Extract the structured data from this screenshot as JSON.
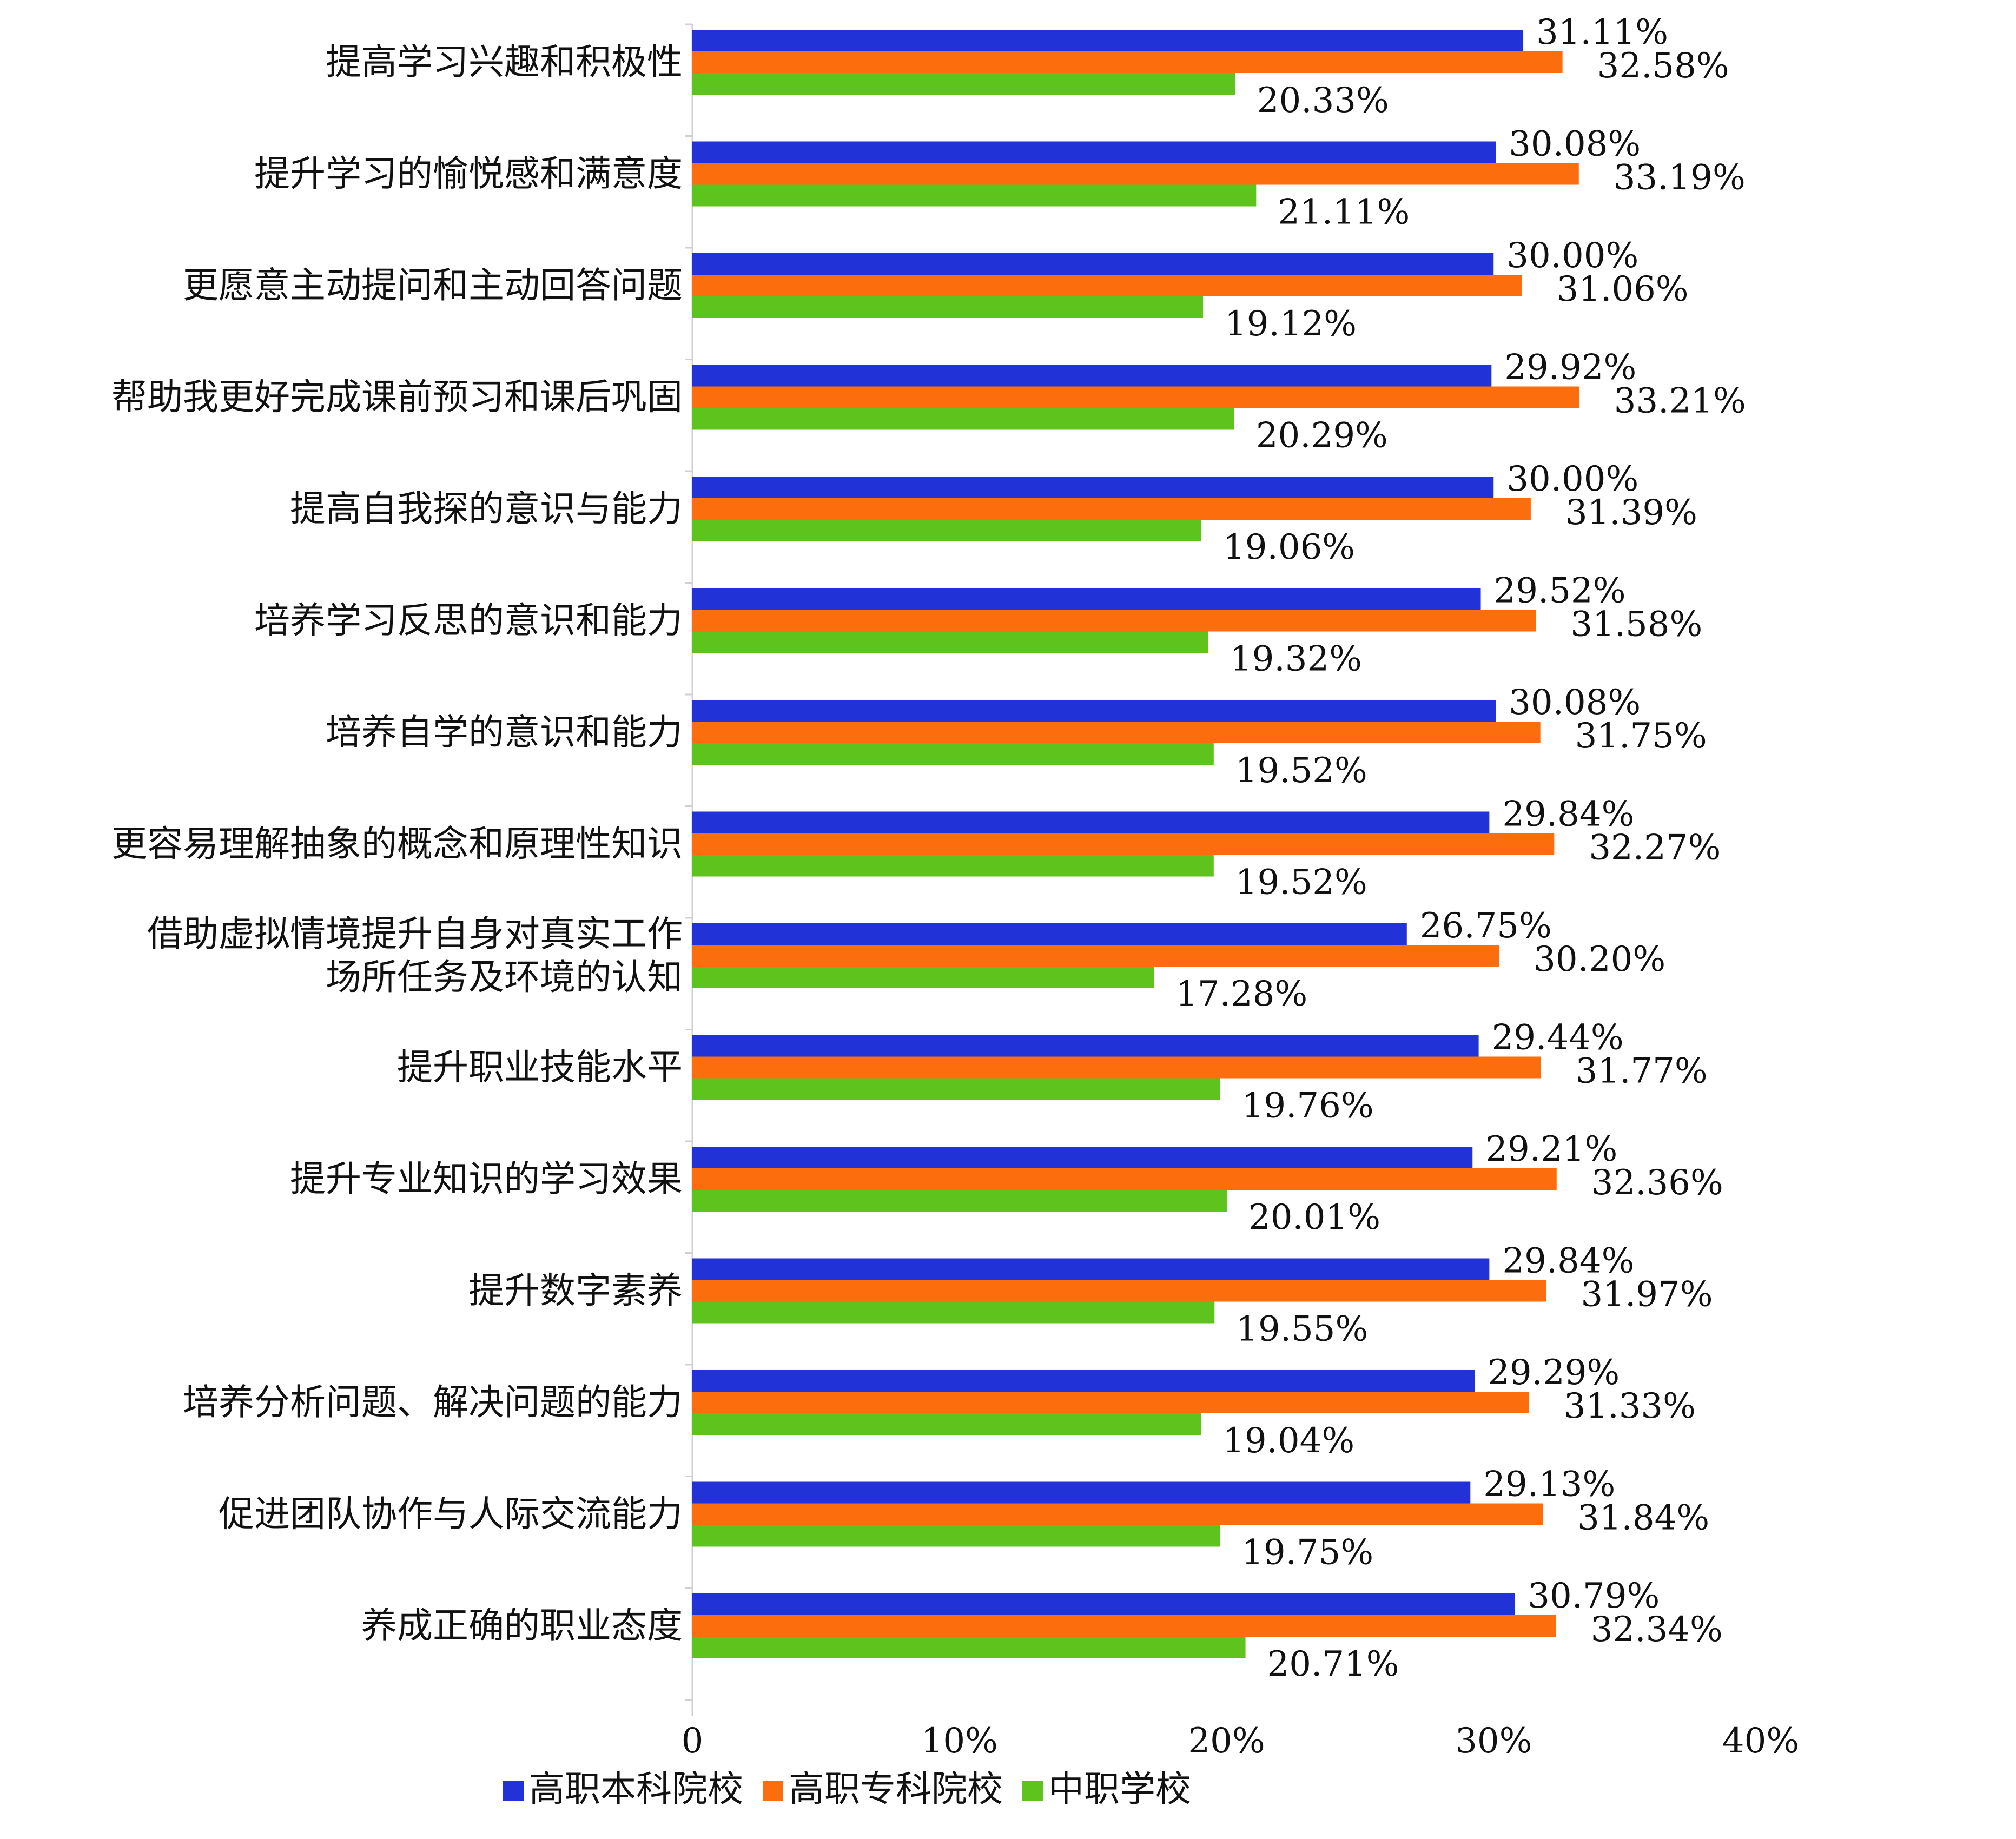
{
  "chart_data": {
    "type": "bar",
    "orientation": "horizontal",
    "categories": [
      [
        "提高学习兴趣和积极性"
      ],
      [
        "提升学习的愉悦感和满意度"
      ],
      [
        "更愿意主动提问和主动回答问题"
      ],
      [
        "帮助我更好完成课前预习和课后巩固"
      ],
      [
        "提高自我探的意识与能力"
      ],
      [
        "培养学习反思的意识和能力"
      ],
      [
        "培养自学的意识和能力"
      ],
      [
        "更容易理解抽象的概念和原理性知识"
      ],
      [
        "借助虚拟情境提升自身对真实工作",
        "场所任务及环境的认知"
      ],
      [
        "提升职业技能水平"
      ],
      [
        "提升专业知识的学习效果"
      ],
      [
        "提升数字素养"
      ],
      [
        "培养分析问题、解决问题的能力"
      ],
      [
        "促进团队协作与人际交流能力"
      ],
      [
        "养成正确的职业态度"
      ]
    ],
    "series": [
      {
        "name": "高职本科院校",
        "color": "#2132d6",
        "values": [
          31.11,
          30.08,
          30.0,
          29.92,
          30.0,
          29.52,
          30.08,
          29.84,
          26.75,
          29.44,
          29.21,
          29.84,
          29.29,
          29.13,
          30.79
        ],
        "labels": [
          "31.11%",
          "30.08%",
          "30.00%",
          "29.92%",
          "30.00%",
          "29.52%",
          "30.08%",
          "29.84%",
          "26.75%",
          "29.44%",
          "29.21%",
          "29.84%",
          "29.29%",
          "29.13%",
          "30.79%"
        ]
      },
      {
        "name": "高职专科院校",
        "color": "#fb6d0d",
        "values": [
          32.58,
          33.19,
          31.06,
          33.21,
          31.39,
          31.58,
          31.75,
          32.27,
          30.2,
          31.77,
          32.36,
          31.97,
          31.33,
          31.84,
          32.34
        ],
        "labels": [
          "32.58%",
          "33.19%",
          "31.06%",
          "33.21%",
          "31.39%",
          "31.58%",
          "31.75%",
          "32.27%",
          "30.20%",
          "31.77%",
          "32.36%",
          "31.97%",
          "31.33%",
          "31.84%",
          "32.34%"
        ]
      },
      {
        "name": "中职学校",
        "color": "#5fc31e",
        "values": [
          20.33,
          21.11,
          19.12,
          20.29,
          19.06,
          19.32,
          19.52,
          19.52,
          17.28,
          19.76,
          20.01,
          19.55,
          19.04,
          19.75,
          20.71
        ],
        "labels": [
          "20.33%",
          "21.11%",
          "19.12%",
          "20.29%",
          "19.06%",
          "19.32%",
          "19.52%",
          "19.52%",
          "17.28%",
          "19.76%",
          "20.01%",
          "19.55%",
          "19.04%",
          "19.75%",
          "20.71%"
        ]
      }
    ],
    "xlim": [
      0,
      40
    ],
    "xticks": [
      0,
      10,
      20,
      30,
      40
    ],
    "xtick_labels": [
      "0",
      "10%",
      "20%",
      "30%",
      "40%"
    ],
    "legend": {
      "position": "bottom",
      "entries": [
        {
          "name": "高职本科院校",
          "color": "#2132d6"
        },
        {
          "name": "高职专科院校",
          "color": "#fb6d0d"
        },
        {
          "name": "中职学校",
          "color": "#5fc31e"
        }
      ]
    },
    "grid": false
  }
}
